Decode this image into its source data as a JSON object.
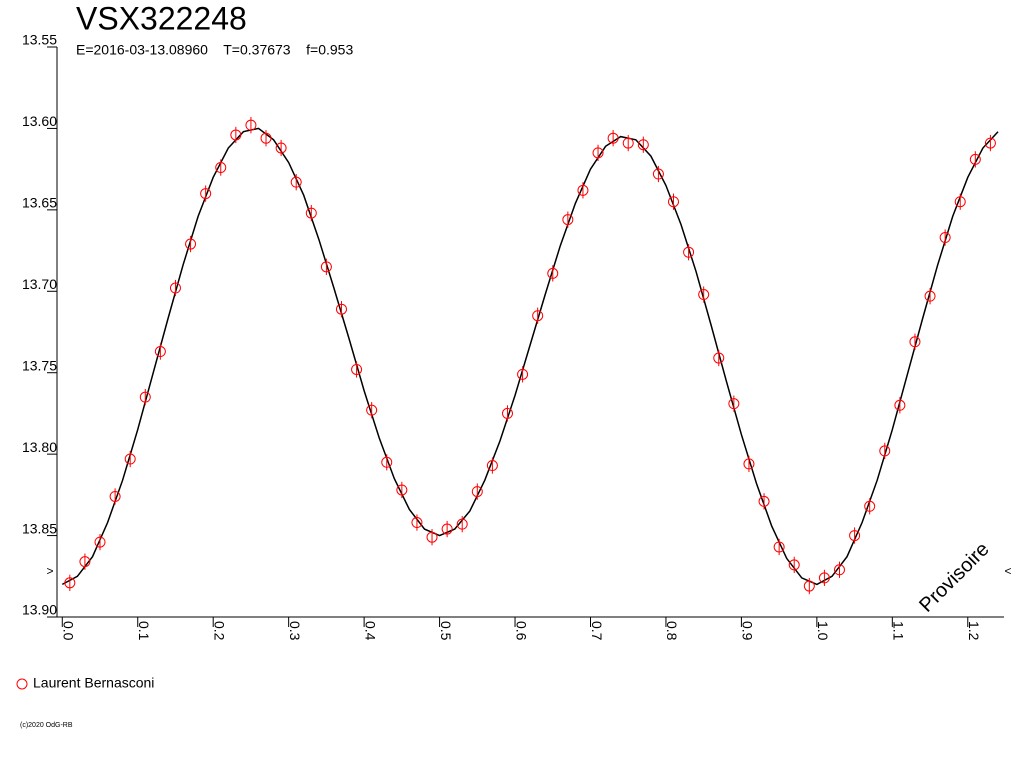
{
  "chart_data": {
    "type": "scatter",
    "title": "VSX322248",
    "subtitle": "E=2016-03-13.08960    T=0.37673    f=0.953",
    "watermark": "Provisoire",
    "footer": "(c)2020 OdG-RB",
    "edge_markers": [
      ">",
      "<"
    ],
    "xlim": [
      -0.007,
      1.248
    ],
    "ylim": [
      13.9,
      13.55
    ],
    "xticks": [
      {
        "value": 0,
        "label": "0.0"
      },
      0.1,
      0.2,
      0.3,
      0.4,
      0.5,
      0.6,
      0.7,
      0.8,
      0.9,
      {
        "value": 1,
        "label": "1.0"
      },
      1.1,
      1.2
    ],
    "yticks": [
      13.55,
      {
        "value": 13.6,
        "label": "13.60"
      },
      13.65,
      {
        "value": 13.7,
        "label": "13.70"
      },
      13.75,
      {
        "value": 13.8,
        "label": "13.80"
      },
      13.85,
      {
        "value": 13.9,
        "label": "13.90"
      }
    ],
    "grid": false,
    "series": [
      {
        "name": "Laurent Bernasconi",
        "color": "#ff0000",
        "error": 0.005,
        "x": [
          0.01,
          0.03,
          0.05,
          0.07,
          0.09,
          0.11,
          0.13,
          0.15,
          0.17,
          0.19,
          0.21,
          0.23,
          0.25,
          0.27,
          0.29,
          0.31,
          0.33,
          0.35,
          0.37,
          0.39,
          0.41,
          0.43,
          0.45,
          0.47,
          0.49,
          0.51,
          0.53,
          0.55,
          0.57,
          0.59,
          0.61,
          0.63,
          0.65,
          0.67,
          0.69,
          0.71,
          0.73,
          0.75,
          0.77,
          0.79,
          0.81,
          0.83,
          0.85,
          0.87,
          0.89,
          0.91,
          0.93,
          0.95,
          0.97,
          0.99,
          1.01,
          1.03,
          1.05,
          1.07,
          1.09,
          1.11,
          1.13,
          1.15,
          1.17,
          1.19,
          1.21,
          1.23
        ],
        "values": [
          13.879,
          13.866,
          13.854,
          13.826,
          13.803,
          13.765,
          13.737,
          13.698,
          13.671,
          13.64,
          13.624,
          13.604,
          13.598,
          13.606,
          13.612,
          13.633,
          13.652,
          13.685,
          13.711,
          13.748,
          13.773,
          13.805,
          13.822,
          13.842,
          13.851,
          13.846,
          13.843,
          13.823,
          13.807,
          13.775,
          13.751,
          13.715,
          13.689,
          13.656,
          13.638,
          13.615,
          13.606,
          13.609,
          13.61,
          13.628,
          13.645,
          13.676,
          13.702,
          13.741,
          13.769,
          13.806,
          13.829,
          13.857,
          13.868,
          13.881,
          13.876,
          13.871,
          13.85,
          13.832,
          13.798,
          13.77,
          13.731,
          13.703,
          13.667,
          13.645,
          13.619,
          13.609
        ]
      }
    ],
    "fit": {
      "color": "#000000",
      "x": [
        0,
        0.02,
        0.04,
        0.06,
        0.08,
        0.1,
        0.12,
        0.14,
        0.16,
        0.18,
        0.2,
        0.22,
        0.24,
        0.26,
        0.28,
        0.3,
        0.32,
        0.34,
        0.36,
        0.38,
        0.4,
        0.42,
        0.44,
        0.46,
        0.48,
        0.5,
        0.52,
        0.54,
        0.56,
        0.58,
        0.6,
        0.62,
        0.64,
        0.66,
        0.68,
        0.7,
        0.72,
        0.74,
        0.76,
        0.78,
        0.8,
        0.82,
        0.84,
        0.86,
        0.88,
        0.9,
        0.92,
        0.94,
        0.96,
        0.98,
        1,
        1.02,
        1.04,
        1.06,
        1.08,
        1.1,
        1.12,
        1.14,
        1.16,
        1.18,
        1.2,
        1.22,
        1.24
      ],
      "values": [
        13.88,
        13.875,
        13.863,
        13.842,
        13.816,
        13.785,
        13.751,
        13.717,
        13.684,
        13.654,
        13.63,
        13.612,
        13.602,
        13.6,
        13.607,
        13.621,
        13.641,
        13.668,
        13.698,
        13.729,
        13.761,
        13.79,
        13.815,
        13.834,
        13.846,
        13.85,
        13.846,
        13.835,
        13.816,
        13.792,
        13.764,
        13.733,
        13.702,
        13.672,
        13.646,
        13.625,
        13.611,
        13.605,
        13.607,
        13.617,
        13.635,
        13.659,
        13.688,
        13.721,
        13.755,
        13.788,
        13.818,
        13.844,
        13.864,
        13.876,
        13.88,
        13.875,
        13.863,
        13.842,
        13.816,
        13.785,
        13.751,
        13.717,
        13.684,
        13.654,
        13.63,
        13.612,
        13.602
      ]
    }
  }
}
